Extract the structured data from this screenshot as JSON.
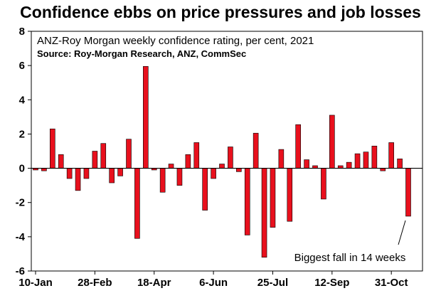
{
  "chart_data": {
    "type": "bar",
    "title": "Confidence ebbs on price pressures and job losses",
    "subtitle": "ANZ-Roy Morgan weekly confidence rating, per cent, 2021",
    "source": "Source: Roy-Morgan Research, ANZ, CommSec",
    "annotation": "Biggest fall in 14 weeks",
    "xlabel": "",
    "ylabel": "",
    "ylim": [
      -6,
      8
    ],
    "yticks": [
      "8",
      "6",
      "4",
      "2",
      "0",
      "-2",
      "-4",
      "-6"
    ],
    "x_tick_labels": [
      "10-Jan",
      "28-Feb",
      "18-Apr",
      "6-Jun",
      "25-Jul",
      "12-Sep",
      "31-Oct"
    ],
    "x_tick_label_weeks": [
      0,
      7,
      14,
      21,
      28,
      35,
      42
    ],
    "grid": false,
    "bar_color": "#e8101d",
    "values": [
      -0.1,
      -0.15,
      2.3,
      0.8,
      -0.6,
      -1.3,
      -0.6,
      1.0,
      1.45,
      -0.85,
      -0.45,
      1.7,
      -4.1,
      5.95,
      -0.1,
      -1.4,
      0.25,
      -1.0,
      0.8,
      1.5,
      -2.45,
      -0.6,
      0.25,
      1.25,
      -0.2,
      -3.9,
      2.05,
      -5.2,
      -3.45,
      1.1,
      -3.1,
      2.55,
      0.5,
      0.15,
      -1.8,
      3.1,
      0.15,
      0.35,
      0.85,
      0.95,
      1.3,
      -0.15,
      1.5,
      0.55,
      -2.8
    ]
  }
}
